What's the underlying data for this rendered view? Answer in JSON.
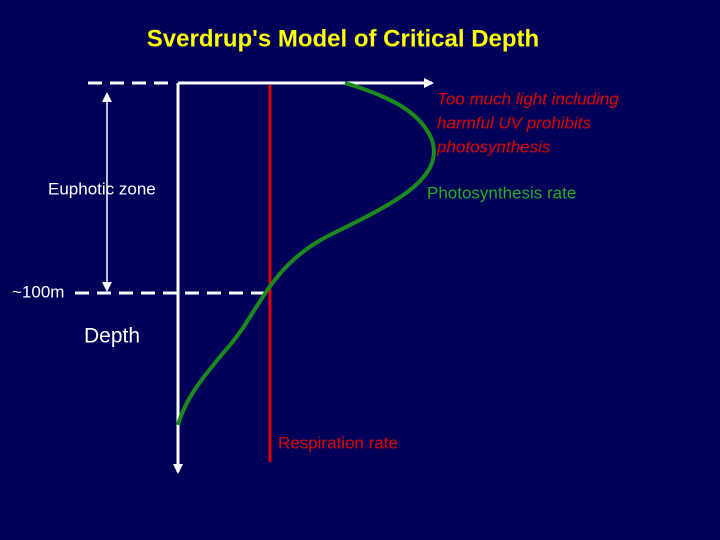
{
  "header": {
    "title": "Sverdrup's Model of Critical Depth"
  },
  "labels": {
    "uv_note": [
      "Too much light including",
      "harmful UV prohibits",
      "photosynthesis"
    ],
    "euphotic_zone": "Euphotic zone",
    "photosynthesis_rate": "Photosynthesis rate",
    "depth_marker": "~100m",
    "depth_axis": "Depth",
    "respiration_rate": "Respiration rate"
  }
}
